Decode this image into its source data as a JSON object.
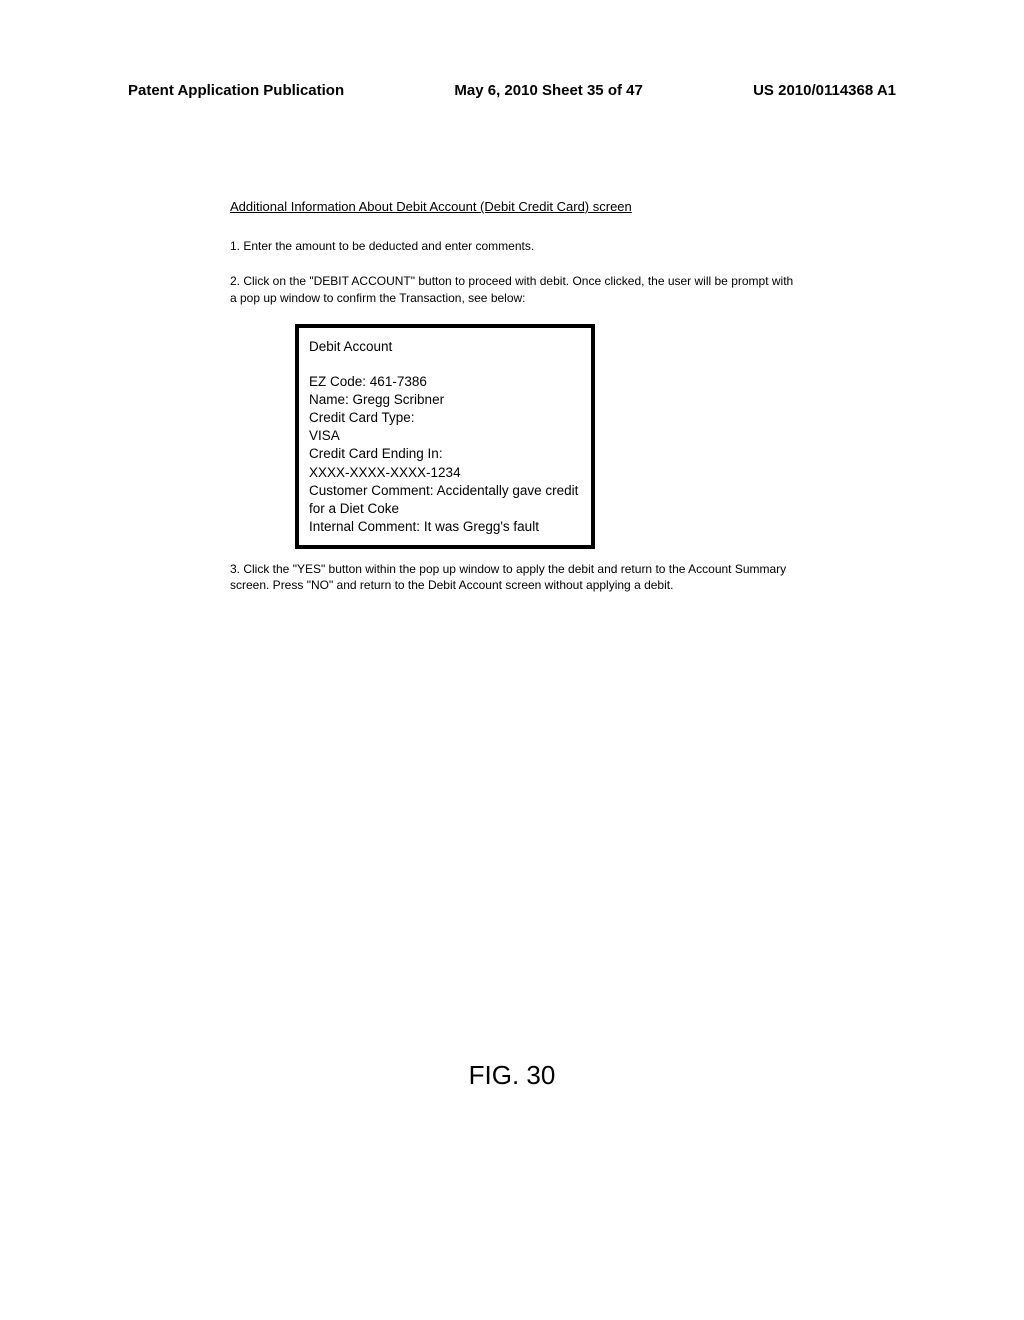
{
  "header": {
    "left": "Patent Application Publication",
    "center": "May 6, 2010  Sheet 35 of 47",
    "right": "US 2010/0114368 A1"
  },
  "section_title": "Additional Information About Debit Account (Debit Credit Card) screen",
  "instruction1": "1. Enter the amount to be deducted and enter comments.",
  "instruction2": "2. Click on the \"DEBIT ACCOUNT\" button to proceed with debit.  Once clicked, the user will be prompt with a pop up window to confirm the Transaction, see below:",
  "popup": {
    "title": "Debit Account",
    "ez_code_label": "EZ Code:",
    "ez_code_value": "461-7386",
    "name_label": "Name:",
    "name_value": "Gregg Scribner",
    "card_type_label": "Credit Card Type:",
    "card_type_value": "VISA",
    "card_ending_label": "Credit Card Ending In:",
    "card_ending_value": "XXXX-XXXX-XXXX-1234",
    "customer_comment_label": "Customer Comment:",
    "customer_comment_value": "Accidentally gave credit for a Diet Coke",
    "internal_comment_label": "Internal Comment:",
    "internal_comment_value": "It was Gregg's fault"
  },
  "instruction3": "3.  Click the \"YES\" button within the pop up window to apply the debit and return to the Account Summary screen.  Press \"NO\" and return to the Debit Account screen without applying a debit.",
  "figure_label": "FIG. 30"
}
